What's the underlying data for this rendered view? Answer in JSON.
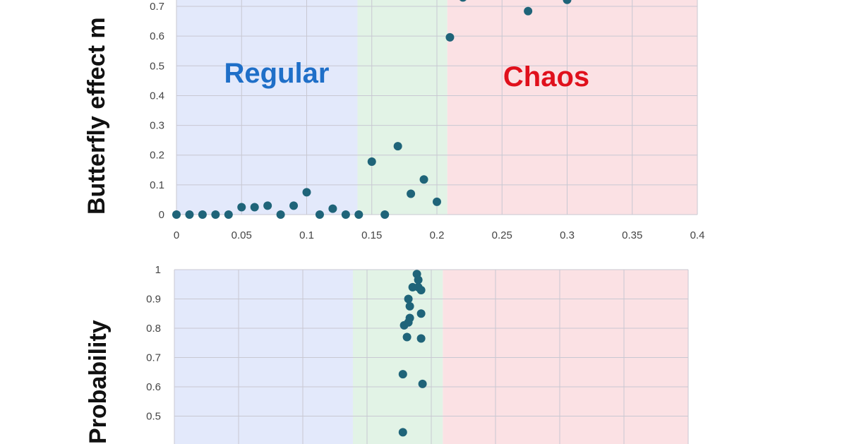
{
  "colors": {
    "regular_band": "#e3e9fb",
    "transition_band": "#e2f3e6",
    "chaos_band": "#fbe1e4",
    "marker": "#1f6479",
    "regular_text": "#1f6fc8",
    "chaos_text": "#e0101c"
  },
  "chart_data": [
    {
      "type": "scatter",
      "ylabel": "Butterfly effect m",
      "xlim": [
        0,
        0.4
      ],
      "ylim": [
        0,
        0.7
      ],
      "x_ticks": [
        "0",
        "0.05",
        "0.1",
        "0.15",
        "0.2",
        "0.25",
        "0.3",
        "0.35",
        "0.4"
      ],
      "y_ticks": [
        "0",
        "0.1",
        "0.2",
        "0.3",
        "0.4",
        "0.5",
        "0.6",
        "0.7"
      ],
      "grid": true,
      "regions": [
        {
          "name": "Regular",
          "from": 0,
          "to": 0.139
        },
        {
          "name": "",
          "from": 0.139,
          "to": 0.208
        },
        {
          "name": "Chaos",
          "from": 0.208,
          "to": 0.4
        }
      ],
      "points": [
        [
          0.0,
          0.0
        ],
        [
          0.01,
          0.0
        ],
        [
          0.02,
          0.0
        ],
        [
          0.03,
          0.0
        ],
        [
          0.04,
          0.0
        ],
        [
          0.05,
          0.025
        ],
        [
          0.06,
          0.025
        ],
        [
          0.07,
          0.03
        ],
        [
          0.08,
          0.0
        ],
        [
          0.09,
          0.03
        ],
        [
          0.1,
          0.075
        ],
        [
          0.11,
          0.0
        ],
        [
          0.12,
          0.02
        ],
        [
          0.13,
          0.0
        ],
        [
          0.14,
          0.0
        ],
        [
          0.15,
          0.178
        ],
        [
          0.16,
          0.0
        ],
        [
          0.17,
          0.23
        ],
        [
          0.18,
          0.07
        ],
        [
          0.19,
          0.118
        ],
        [
          0.2,
          0.043
        ],
        [
          0.21,
          0.596
        ],
        [
          0.27,
          0.684
        ],
        [
          0.3,
          0.722
        ],
        [
          0.22,
          0.73
        ]
      ]
    },
    {
      "type": "scatter",
      "ylabel": "Probability",
      "xlim": [
        0,
        0.4
      ],
      "ylim": [
        0.4,
        1
      ],
      "y_ticks": [
        "0.5",
        "0.6",
        "0.7",
        "0.8",
        "0.9",
        "1"
      ],
      "grid": true,
      "regions": [
        {
          "name": "",
          "from": 0,
          "to": 0.139
        },
        {
          "name": "",
          "from": 0.139,
          "to": 0.209
        },
        {
          "name": "",
          "from": 0.209,
          "to": 0.4
        }
      ],
      "points": [
        [
          0.1888,
          0.985
        ],
        [
          0.1899,
          0.965
        ],
        [
          0.1855,
          0.94
        ],
        [
          0.1899,
          0.94
        ],
        [
          0.1921,
          0.93
        ],
        [
          0.1822,
          0.9
        ],
        [
          0.1833,
          0.875
        ],
        [
          0.1921,
          0.85
        ],
        [
          0.1833,
          0.835
        ],
        [
          0.1789,
          0.81
        ],
        [
          0.1822,
          0.82
        ],
        [
          0.1811,
          0.77
        ],
        [
          0.1921,
          0.765
        ],
        [
          0.1779,
          0.643
        ],
        [
          0.1932,
          0.61
        ],
        [
          0.1779,
          0.445
        ]
      ]
    }
  ]
}
